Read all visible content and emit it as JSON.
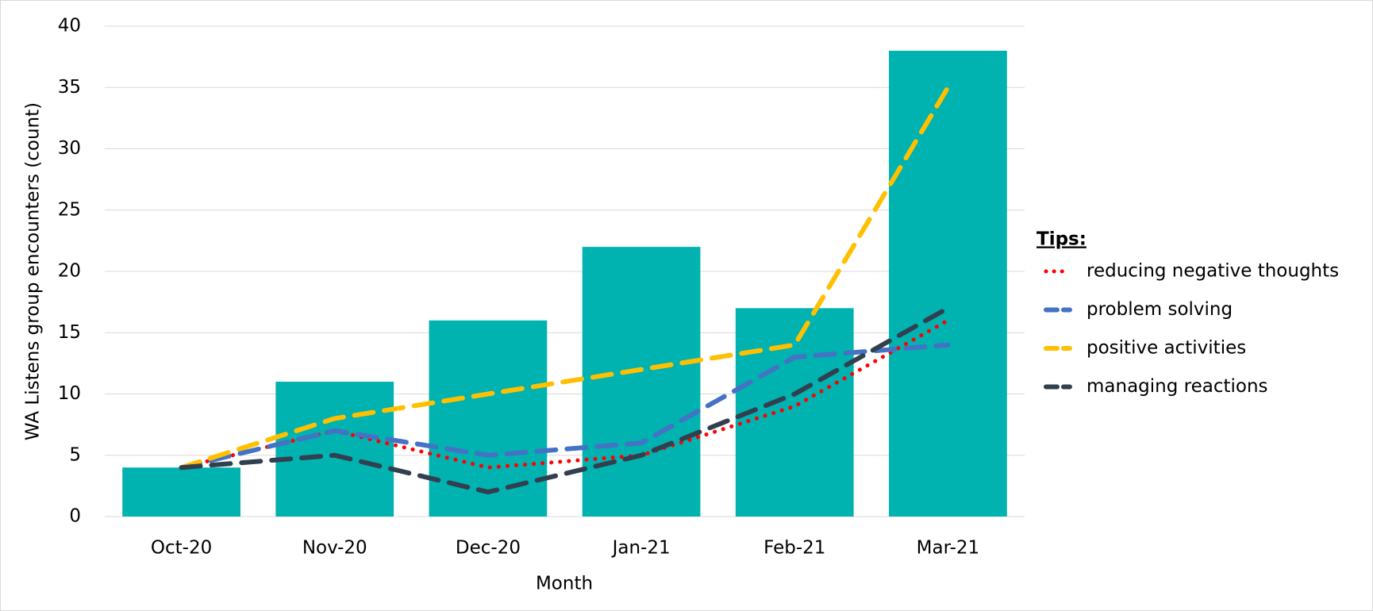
{
  "chart_data": {
    "type": "bar_line",
    "x_label": "Month",
    "y_label": "WA Listens group encounters (count)",
    "categories": [
      "Oct-20",
      "Nov-20",
      "Dec-20",
      "Jan-21",
      "Feb-21",
      "Mar-21"
    ],
    "bars": {
      "color": "#00b2b0",
      "values": [
        4,
        11,
        16,
        22,
        17,
        38
      ]
    },
    "legend_title": "Tips:",
    "legend_position": "right",
    "series": [
      {
        "name": "reducing negative thoughts",
        "color": "#ff0000",
        "dash": "dotted",
        "values": [
          4,
          7,
          4,
          5,
          9,
          16
        ]
      },
      {
        "name": "problem solving",
        "color": "#4472c4",
        "dash": "dashed",
        "values": [
          4,
          7,
          5,
          6,
          13,
          14
        ]
      },
      {
        "name": "positive activities",
        "color": "#ffc000",
        "dash": "dashed",
        "values": [
          4,
          8,
          10,
          12,
          14,
          35
        ]
      },
      {
        "name": "managing reactions",
        "color": "#323f4f",
        "dash": "dashed",
        "values": [
          4,
          5,
          2,
          5,
          10,
          17
        ]
      }
    ],
    "ylim": [
      0,
      40
    ],
    "yticks": [
      0,
      5,
      10,
      15,
      20,
      25,
      30,
      35,
      40
    ],
    "grid": true
  }
}
